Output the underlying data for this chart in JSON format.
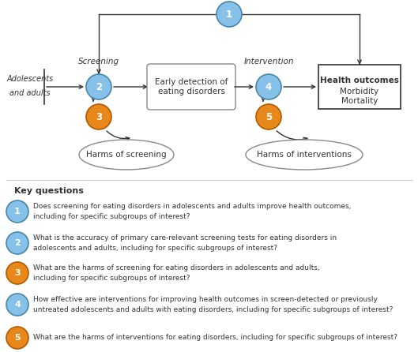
{
  "fig_width": 5.29,
  "fig_height": 4.46,
  "dpi": 100,
  "blue_fill": "#85C1E9",
  "blue_edge": "#4A86A8",
  "orange_fill": "#E8871A",
  "orange_edge": "#B05A00",
  "text_dark": "#333333",
  "arrow_color": "#333333",
  "box_edge": "#888888",
  "health_box_edge": "#333333",
  "kq1_text": "Does screening for eating disorders in adolescents and adults improve health outcomes,\nincluding for specific subgroups of interest?",
  "kq2_text": "What is the accuracy of primary care-relevant screening tests for eating disorders in\nadolescents and adults, including for specific subgroups of interest?",
  "kq3_text": "What are the harms of screening for eating disorders in adolescents and adults,\nincluding for specific subgroups of interest?",
  "kq4_text": "How effective are interventions for improving health outcomes in screen-detected or previously\nuntreated adolescents and adults with eating disorders, including for specific subgroups of interest?",
  "kq5_text": "What are the harms of interventions for eating disorders, including for specific subgroups of interest?"
}
